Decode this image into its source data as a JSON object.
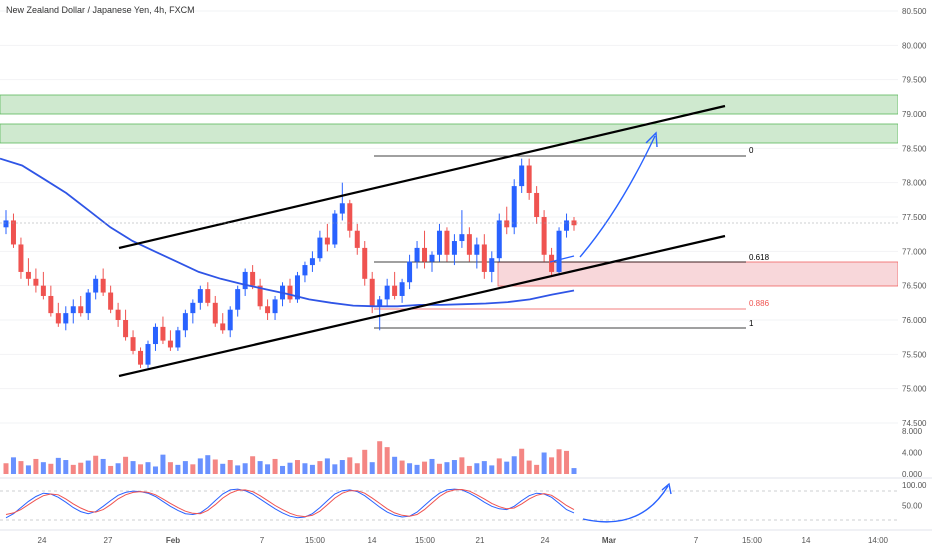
{
  "chart_data": {
    "type": "candlestick",
    "title": "New Zealand Dollar / Japanese Yen, 4h, FXCM",
    "price_axis": {
      "ticks": [
        "80.500",
        "80.000",
        "79.500",
        "79.000",
        "78.500",
        "78.000",
        "77.500",
        "77.000",
        "76.500",
        "76.000",
        "75.500",
        "75.000",
        "74.500"
      ],
      "range": [
        74.2,
        80.55
      ]
    },
    "volume_axis": {
      "ticks": [
        "8.000",
        "4.000",
        "0.000"
      ]
    },
    "oscillator_axis": {
      "ticks": [
        "100.00",
        "50.00"
      ]
    },
    "time_axis": {
      "ticks": [
        "24",
        "27",
        "Feb",
        "7",
        "15:00",
        "14",
        "15:00",
        "21",
        "24",
        "Mar",
        "7",
        "15:00",
        "14",
        "14:00"
      ]
    },
    "colors": {
      "up": "#2962ff",
      "down": "#ef5350",
      "ma": "#2f55e6",
      "zone_supply": "#b9dfb9",
      "zone_demand": "#f5c2c6",
      "fib_88": "#ef5350"
    },
    "candles": [
      [
        77.35,
        77.6,
        77.25,
        77.45
      ],
      [
        77.45,
        77.55,
        77.05,
        77.1
      ],
      [
        77.1,
        77.2,
        76.6,
        76.7
      ],
      [
        76.7,
        76.9,
        76.5,
        76.6
      ],
      [
        76.6,
        76.75,
        76.4,
        76.5
      ],
      [
        76.5,
        76.7,
        76.3,
        76.35
      ],
      [
        76.35,
        76.5,
        76.05,
        76.1
      ],
      [
        76.1,
        76.25,
        75.9,
        75.95
      ],
      [
        75.95,
        76.2,
        75.85,
        76.1
      ],
      [
        76.1,
        76.3,
        75.95,
        76.2
      ],
      [
        76.2,
        76.35,
        76.05,
        76.1
      ],
      [
        76.1,
        76.45,
        76.0,
        76.4
      ],
      [
        76.4,
        76.65,
        76.3,
        76.6
      ],
      [
        76.6,
        76.75,
        76.35,
        76.4
      ],
      [
        76.4,
        76.5,
        76.1,
        76.15
      ],
      [
        76.15,
        76.25,
        75.9,
        76.0
      ],
      [
        76.0,
        76.15,
        75.7,
        75.75
      ],
      [
        75.75,
        75.85,
        75.5,
        75.55
      ],
      [
        75.55,
        75.6,
        75.3,
        75.35
      ],
      [
        75.35,
        75.7,
        75.3,
        75.65
      ],
      [
        75.65,
        75.95,
        75.55,
        75.9
      ],
      [
        75.9,
        76.05,
        75.65,
        75.7
      ],
      [
        75.7,
        75.85,
        75.55,
        75.6
      ],
      [
        75.6,
        75.9,
        75.55,
        75.85
      ],
      [
        75.85,
        76.15,
        75.75,
        76.1
      ],
      [
        76.1,
        76.3,
        75.95,
        76.25
      ],
      [
        76.25,
        76.5,
        76.15,
        76.45
      ],
      [
        76.45,
        76.55,
        76.2,
        76.25
      ],
      [
        76.25,
        76.35,
        75.9,
        75.95
      ],
      [
        75.95,
        76.1,
        75.8,
        75.85
      ],
      [
        75.85,
        76.2,
        75.75,
        76.15
      ],
      [
        76.15,
        76.5,
        76.05,
        76.45
      ],
      [
        76.45,
        76.75,
        76.35,
        76.7
      ],
      [
        76.7,
        76.8,
        76.45,
        76.5
      ],
      [
        76.5,
        76.6,
        76.15,
        76.2
      ],
      [
        76.2,
        76.3,
        76.0,
        76.1
      ],
      [
        76.1,
        76.35,
        76.0,
        76.3
      ],
      [
        76.3,
        76.55,
        76.2,
        76.5
      ],
      [
        76.5,
        76.6,
        76.25,
        76.3
      ],
      [
        76.3,
        76.7,
        76.25,
        76.65
      ],
      [
        76.65,
        76.85,
        76.55,
        76.8
      ],
      [
        76.8,
        77.0,
        76.7,
        76.9
      ],
      [
        76.9,
        77.3,
        76.85,
        77.2
      ],
      [
        77.2,
        77.4,
        77.0,
        77.1
      ],
      [
        77.1,
        77.6,
        77.05,
        77.55
      ],
      [
        77.55,
        78.0,
        77.45,
        77.7
      ],
      [
        77.7,
        77.75,
        77.2,
        77.3
      ],
      [
        77.3,
        77.4,
        76.95,
        77.05
      ],
      [
        77.05,
        77.15,
        76.5,
        76.6
      ],
      [
        76.6,
        76.7,
        76.1,
        76.2
      ],
      [
        76.2,
        76.35,
        75.85,
        76.3
      ],
      [
        76.3,
        76.6,
        76.2,
        76.5
      ],
      [
        76.5,
        76.7,
        76.3,
        76.35
      ],
      [
        76.35,
        76.6,
        76.25,
        76.55
      ],
      [
        76.55,
        76.95,
        76.45,
        76.85
      ],
      [
        76.85,
        77.15,
        76.75,
        77.05
      ],
      [
        77.05,
        77.3,
        76.75,
        76.85
      ],
      [
        76.85,
        77.0,
        76.7,
        76.95
      ],
      [
        76.95,
        77.4,
        76.85,
        77.3
      ],
      [
        77.3,
        77.35,
        76.85,
        76.95
      ],
      [
        76.95,
        77.25,
        76.8,
        77.15
      ],
      [
        77.15,
        77.6,
        77.05,
        77.25
      ],
      [
        77.25,
        77.35,
        76.85,
        76.95
      ],
      [
        76.95,
        77.2,
        76.75,
        77.1
      ],
      [
        77.1,
        77.25,
        76.6,
        76.7
      ],
      [
        76.7,
        77.0,
        76.55,
        76.9
      ],
      [
        76.9,
        77.55,
        76.85,
        77.45
      ],
      [
        77.45,
        77.65,
        77.25,
        77.35
      ],
      [
        77.35,
        78.05,
        77.25,
        77.95
      ],
      [
        77.95,
        78.35,
        77.85,
        78.25
      ],
      [
        78.25,
        78.35,
        77.75,
        77.85
      ],
      [
        77.85,
        77.95,
        77.4,
        77.5
      ],
      [
        77.5,
        77.6,
        76.85,
        76.95
      ],
      [
        76.95,
        77.05,
        76.65,
        76.7
      ],
      [
        76.7,
        77.35,
        76.65,
        77.3
      ],
      [
        77.3,
        77.55,
        77.2,
        77.45
      ],
      [
        77.45,
        77.5,
        77.3,
        77.38
      ]
    ],
    "ma": [
      78.35,
      78.25,
      78.05,
      77.85,
      77.6,
      77.35,
      77.15,
      77.0,
      76.85,
      76.7,
      76.6,
      76.52,
      76.45,
      76.38,
      76.3,
      76.25,
      76.21,
      76.2,
      76.2,
      76.22,
      76.22,
      76.23,
      76.24,
      76.26,
      76.3,
      76.37,
      76.43
    ],
    "volume": [
      2.0,
      3.1,
      2.4,
      1.6,
      2.8,
      2.2,
      1.9,
      3.0,
      2.6,
      1.7,
      2.1,
      2.5,
      3.4,
      2.8,
      1.5,
      2.0,
      3.2,
      2.4,
      1.8,
      2.2,
      1.4,
      3.6,
      2.2,
      1.7,
      2.4,
      1.8,
      2.9,
      3.5,
      2.7,
      1.9,
      2.6,
      1.6,
      2.0,
      3.3,
      2.4,
      1.8,
      2.8,
      1.5,
      2.1,
      2.6,
      2.0,
      1.7,
      2.4,
      2.9,
      1.8,
      2.6,
      3.1,
      2.0,
      4.5,
      2.2,
      6.1,
      5.0,
      3.2,
      2.5,
      2.0,
      1.7,
      2.3,
      2.8,
      1.9,
      2.2,
      2.6,
      3.1,
      1.5,
      2.0,
      2.4,
      1.6,
      2.9,
      2.3,
      3.3,
      4.7,
      2.5,
      1.7,
      4.0,
      3.1,
      4.6,
      4.3,
      1.1
    ],
    "volume_colors": [
      "down",
      "up",
      "down",
      "up",
      "down",
      "up",
      "down",
      "up",
      "up",
      "down",
      "down",
      "up",
      "down",
      "up",
      "down",
      "up",
      "down",
      "up",
      "down",
      "up",
      "up",
      "up",
      "down",
      "up",
      "up",
      "down",
      "up",
      "up",
      "down",
      "up",
      "down",
      "up",
      "up",
      "down",
      "up",
      "up",
      "down",
      "up",
      "up",
      "down",
      "up",
      "up",
      "down",
      "up",
      "up",
      "up",
      "down",
      "down",
      "down",
      "up",
      "down",
      "down",
      "up",
      "down",
      "up",
      "up",
      "down",
      "up",
      "down",
      "up",
      "up",
      "down",
      "down",
      "up",
      "up",
      "up",
      "down",
      "up",
      "up",
      "down",
      "down",
      "down",
      "up",
      "down",
      "down",
      "down",
      "up"
    ],
    "osc_a": [
      20,
      30,
      45,
      60,
      72,
      80,
      78,
      70,
      58,
      45,
      35,
      30,
      35,
      48,
      62,
      75,
      82,
      85,
      84,
      80,
      72,
      60,
      48,
      38,
      30,
      28,
      32,
      45,
      62,
      78,
      88,
      90,
      86,
      78,
      66,
      54,
      42,
      32,
      24,
      20,
      22,
      30,
      45,
      62,
      78,
      86,
      88,
      84,
      74,
      60,
      46,
      34,
      26,
      22,
      24,
      34,
      50,
      66,
      80,
      88,
      90,
      88,
      80,
      70,
      58,
      48,
      42,
      40,
      48,
      62,
      74,
      80,
      78,
      70,
      55,
      40,
      32
    ],
    "osc_b": [
      28,
      32,
      40,
      52,
      64,
      74,
      78,
      76,
      66,
      54,
      44,
      36,
      34,
      40,
      52,
      66,
      76,
      82,
      84,
      82,
      76,
      66,
      55,
      45,
      36,
      31,
      30,
      38,
      52,
      68,
      80,
      87,
      88,
      84,
      74,
      62,
      50,
      40,
      31,
      25,
      23,
      26,
      36,
      52,
      68,
      80,
      86,
      86,
      80,
      68,
      55,
      42,
      32,
      26,
      24,
      28,
      40,
      56,
      72,
      83,
      88,
      89,
      85,
      76,
      66,
      55,
      47,
      42,
      44,
      54,
      66,
      75,
      79,
      75,
      63,
      50,
      40
    ],
    "fib_labels": [
      "0",
      "0.618",
      "0.886",
      "1"
    ],
    "fib_levels": [
      78.4,
      76.83,
      76.13,
      75.85
    ]
  }
}
